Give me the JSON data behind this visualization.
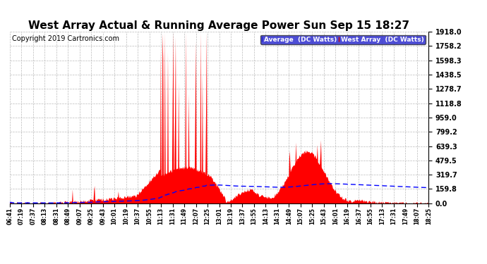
{
  "title": "West Array Actual & Running Average Power Sun Sep 15 18:27",
  "copyright": "Copyright 2019 Cartronics.com",
  "y_max": 1918.0,
  "y_min": 0.0,
  "y_ticks": [
    0.0,
    159.8,
    319.7,
    479.5,
    639.3,
    799.2,
    959.0,
    1118.8,
    1278.7,
    1438.5,
    1598.3,
    1758.2,
    1918.0
  ],
  "x_labels": [
    "06:41",
    "07:19",
    "07:37",
    "08:13",
    "08:31",
    "08:49",
    "09:07",
    "09:25",
    "09:43",
    "10:01",
    "10:19",
    "10:37",
    "10:55",
    "11:13",
    "11:31",
    "11:49",
    "12:07",
    "12:25",
    "13:01",
    "13:19",
    "13:37",
    "13:55",
    "14:13",
    "14:31",
    "14:49",
    "15:07",
    "15:25",
    "15:43",
    "16:01",
    "16:19",
    "16:37",
    "16:55",
    "17:13",
    "17:31",
    "17:49",
    "18:07",
    "18:25"
  ],
  "legend_label_avg": "Average  (DC Watts)",
  "legend_label_west": "West Array  (DC Watts)",
  "avg_color": "#0000ff",
  "west_color": "#ff0000",
  "background_color": "#ffffff",
  "grid_color": "#bbbbbb",
  "title_fontsize": 11,
  "copyright_fontsize": 7,
  "tick_fontsize": 7
}
